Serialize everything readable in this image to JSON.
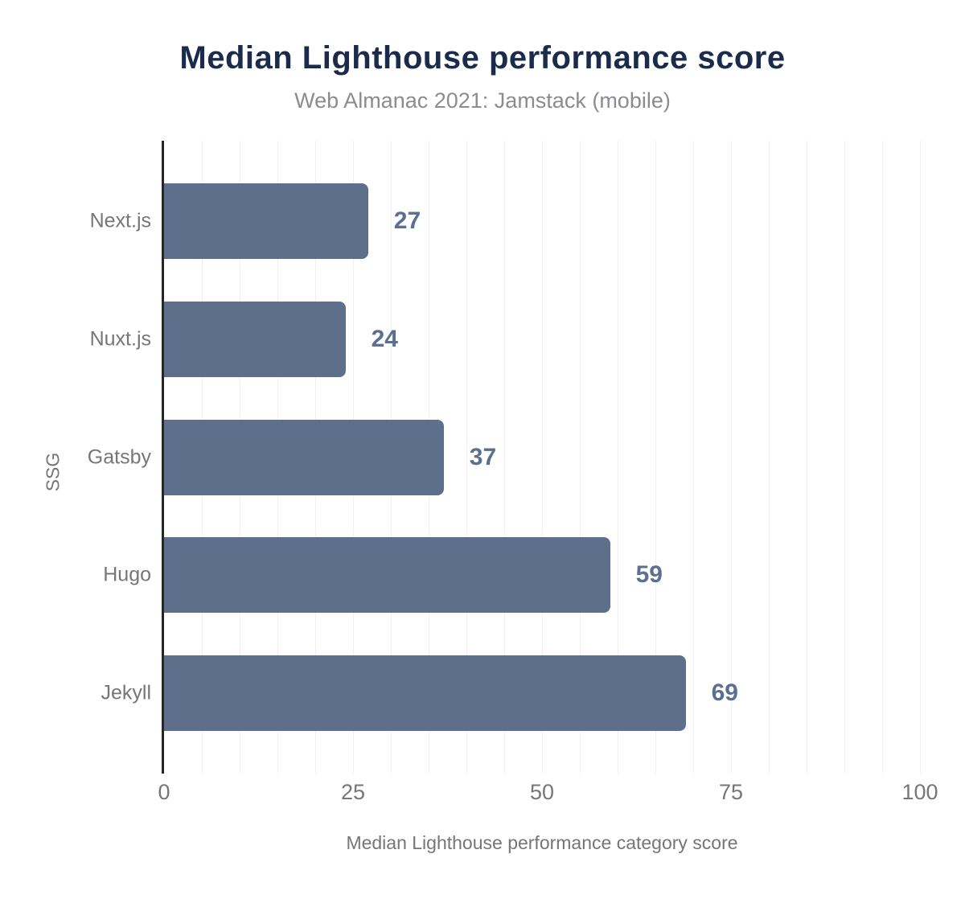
{
  "header": {
    "title": "Median Lighthouse performance score",
    "subtitle": "Web Almanac 2021: Jamstack (mobile)"
  },
  "chart_data": {
    "type": "bar",
    "orientation": "horizontal",
    "title": "Median Lighthouse performance score",
    "subtitle": "Web Almanac 2021: Jamstack (mobile)",
    "categories": [
      "Next.js",
      "Nuxt.js",
      "Gatsby",
      "Hugo",
      "Jekyll"
    ],
    "values": [
      27,
      24,
      37,
      59,
      69
    ],
    "value_labels": [
      "27",
      "24",
      "37",
      "59",
      "69"
    ],
    "xlabel": "Median Lighthouse performance category score",
    "ylabel": "SSG",
    "xlim": [
      0,
      100
    ],
    "x_ticks": [
      0,
      25,
      50,
      75,
      100
    ],
    "x_tick_labels": [
      "0",
      "25",
      "50",
      "75",
      "100"
    ],
    "gridline_step": 5,
    "grid": "vertical-on",
    "legend": "none",
    "colors": {
      "bar": "#5d6f8a",
      "value_label": "#5b7090",
      "title": "#1b2b4b",
      "subtitle": "#8b8b92",
      "axis_text": "#75757a",
      "gridline": "#f0f0f2",
      "axis_line": "#262626",
      "background": "#ffffff"
    }
  }
}
